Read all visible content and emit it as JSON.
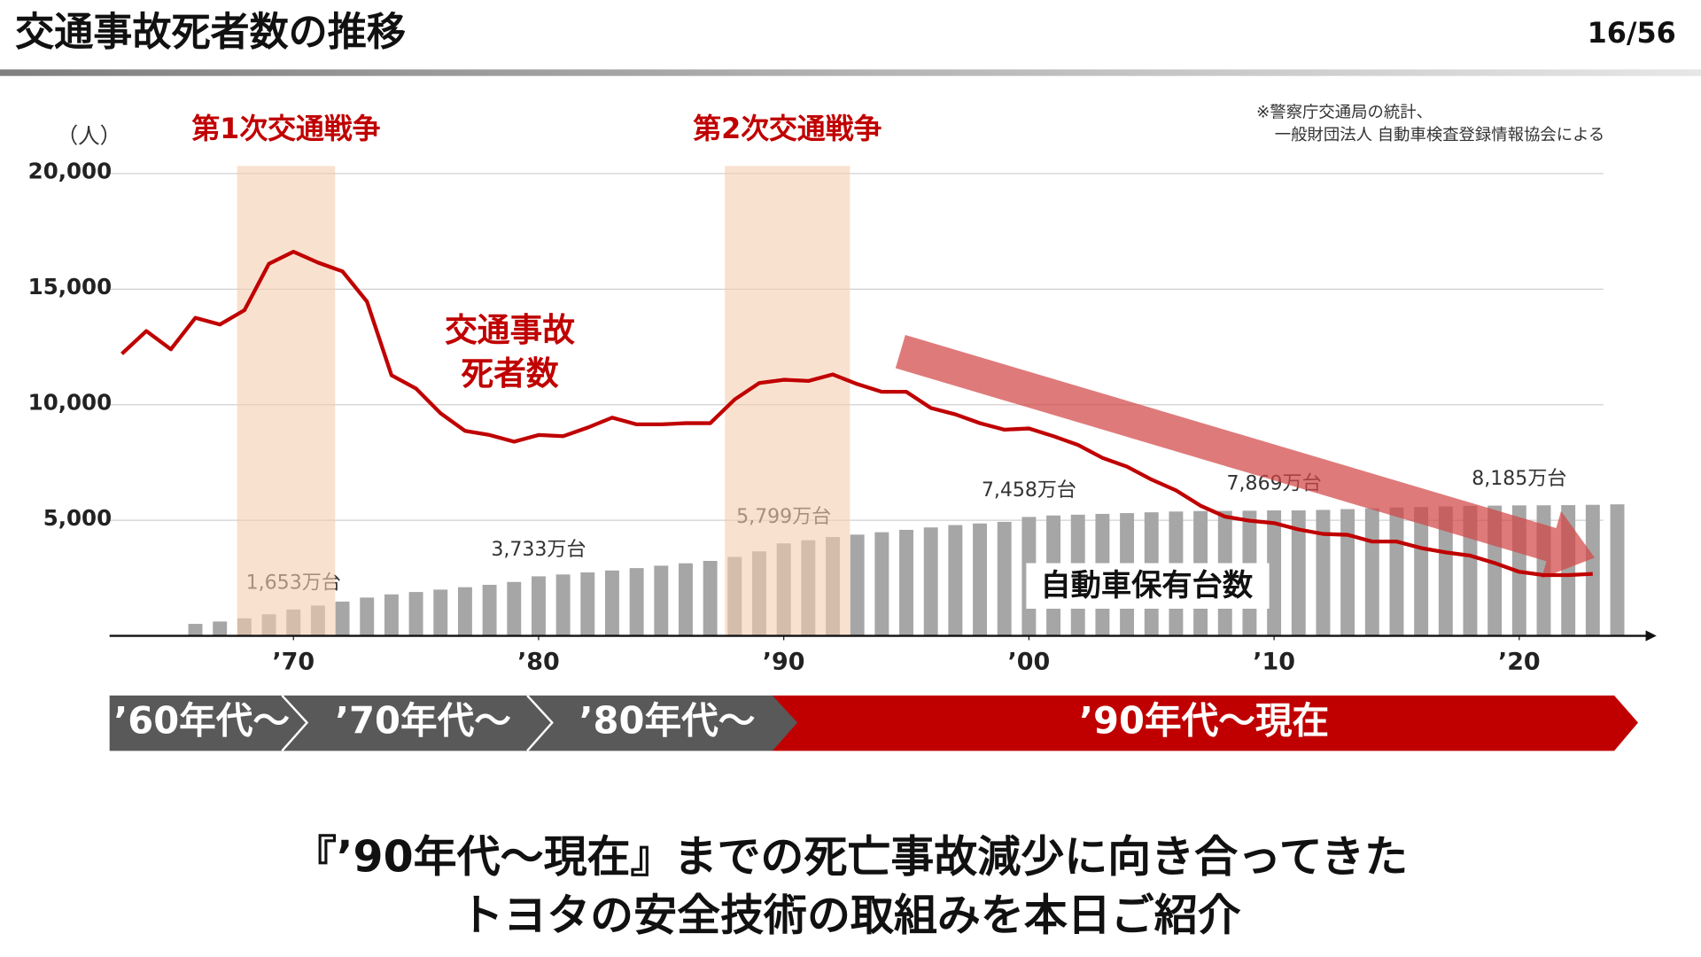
{
  "header": {
    "title": "交通事故死者数の推移",
    "page": "16/56"
  },
  "chart_data": {
    "type": "bar_line",
    "y_unit": "（人）",
    "source_note": [
      "※警察庁交通局の統計、",
      "一般財団法人 自動車検査登録情報協会による"
    ],
    "xlim": [
      1962.5,
      2025.6
    ],
    "xticks": [
      {
        "value": 1970,
        "label": "’70"
      },
      {
        "value": 1980,
        "label": "’80"
      },
      {
        "value": 1990,
        "label": "’90"
      },
      {
        "value": 2000,
        "label": "’00"
      },
      {
        "value": 2010,
        "label": "’10"
      },
      {
        "value": 2020,
        "label": "’20"
      }
    ],
    "ylim": [
      0,
      20000
    ],
    "yticks": [
      {
        "value": 5000,
        "label": "5,000"
      },
      {
        "value": 10000,
        "label": "10,000"
      },
      {
        "value": 15000,
        "label": "15,000"
      },
      {
        "value": 20000,
        "label": "20,000"
      }
    ],
    "y2lim": [
      0,
      29000
    ],
    "grid": true,
    "periods": [
      {
        "label": "第1次交通戦争",
        "start": 1967.7,
        "end": 1971.7
      },
      {
        "label": "第2次交通戦争",
        "start": 1987.6,
        "end": 1992.7
      }
    ],
    "series": [
      {
        "name": "自動車保有台数",
        "type": "bar",
        "axis": "y2",
        "color": "#a6a6a6",
        "x": [
          1966,
          1967,
          1968,
          1969,
          1970,
          1971,
          1972,
          1973,
          1974,
          1975,
          1976,
          1977,
          1978,
          1979,
          1980,
          1981,
          1982,
          1983,
          1984,
          1985,
          1986,
          1987,
          1988,
          1989,
          1990,
          1991,
          1992,
          1993,
          1994,
          1995,
          1996,
          1997,
          1998,
          1999,
          2000,
          2001,
          2002,
          2003,
          2004,
          2005,
          2006,
          2007,
          2008,
          2009,
          2010,
          2011,
          2012,
          2013,
          2014,
          2015,
          2016,
          2017,
          2018,
          2019,
          2020,
          2021,
          2022,
          2023,
          2024
        ],
        "values": [
          750,
          900,
          1100,
          1350,
          1653,
          1900,
          2150,
          2400,
          2600,
          2750,
          2900,
          3050,
          3200,
          3380,
          3733,
          3850,
          3980,
          4100,
          4250,
          4400,
          4550,
          4700,
          4950,
          5300,
          5799,
          6000,
          6200,
          6350,
          6500,
          6650,
          6800,
          6950,
          7050,
          7150,
          7458,
          7550,
          7600,
          7650,
          7700,
          7750,
          7800,
          7830,
          7840,
          7850,
          7869,
          7870,
          7900,
          7950,
          8000,
          8050,
          8080,
          8120,
          8150,
          8170,
          8185,
          8190,
          8200,
          8220,
          8250
        ],
        "value_labels": [
          null,
          null,
          null,
          null,
          "1,653万台",
          null,
          null,
          null,
          null,
          null,
          null,
          null,
          null,
          null,
          "3,733万台",
          null,
          null,
          null,
          null,
          null,
          null,
          null,
          null,
          null,
          "5,799万台",
          null,
          null,
          null,
          null,
          null,
          null,
          null,
          null,
          null,
          "7,458万台",
          null,
          null,
          null,
          null,
          null,
          null,
          null,
          null,
          null,
          "7,869万台",
          null,
          null,
          null,
          null,
          null,
          null,
          null,
          null,
          null,
          "8,185万台",
          null,
          null,
          null,
          null
        ]
      },
      {
        "name": [
          "交通事故",
          "死者数"
        ],
        "type": "line",
        "color": "#c00000",
        "x": [
          1963,
          1964,
          1965,
          1966,
          1967,
          1968,
          1969,
          1970,
          1971,
          1972,
          1973,
          1974,
          1975,
          1976,
          1977,
          1978,
          1979,
          1980,
          1981,
          1982,
          1983,
          1984,
          1985,
          1986,
          1987,
          1988,
          1989,
          1990,
          1991,
          1992,
          1993,
          1994,
          1995,
          1996,
          1997,
          1998,
          1999,
          2000,
          2001,
          2002,
          2003,
          2004,
          2005,
          2006,
          2007,
          2008,
          2009,
          2010,
          2011,
          2012,
          2013,
          2014,
          2015,
          2016,
          2017,
          2018,
          2019,
          2020,
          2021,
          2022,
          2023
        ],
        "values": [
          12200,
          13190,
          12400,
          13760,
          13470,
          14090,
          16100,
          16620,
          16150,
          15770,
          14460,
          11270,
          10700,
          9630,
          8870,
          8690,
          8400,
          8690,
          8640,
          9010,
          9440,
          9150,
          9150,
          9200,
          9200,
          10230,
          10940,
          11080,
          11030,
          11310,
          10890,
          10560,
          10560,
          9860,
          9580,
          9200,
          8920,
          8970,
          8640,
          8260,
          7700,
          7320,
          6760,
          6290,
          5630,
          5160,
          4980,
          4880,
          4600,
          4410,
          4370,
          4080,
          4080,
          3800,
          3610,
          3470,
          3150,
          2770,
          2630,
          2630,
          2680
        ]
      }
    ]
  },
  "eras": [
    "’60年代〜",
    "’70年代〜",
    "’80年代〜",
    "’90年代〜現在"
  ],
  "message": [
    "『’90年代〜現在』までの死亡事故減少に向き合ってきた",
    "トヨタの安全技術の取組みを本日ご紹介"
  ]
}
